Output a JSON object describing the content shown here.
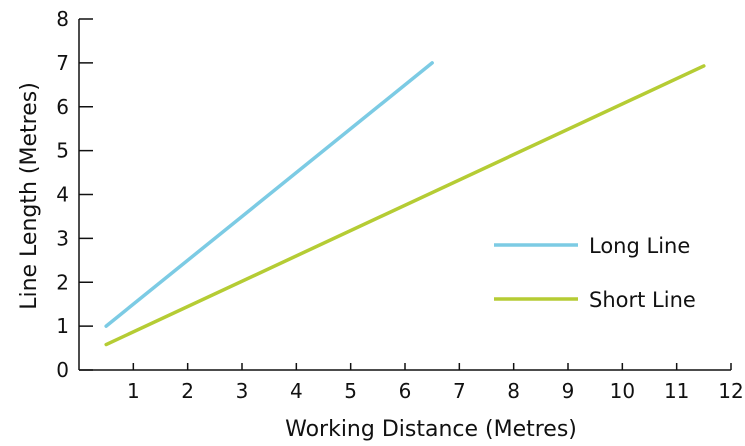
{
  "chart_data": {
    "type": "line",
    "title": "",
    "xlabel": "Working Distance (Metres)",
    "ylabel": "Line Length (Metres)",
    "xlim": [
      0,
      12
    ],
    "ylim": [
      0,
      8
    ],
    "xticks": [
      "1",
      "2",
      "3",
      "4",
      "5",
      "6",
      "7",
      "8",
      "9",
      "10",
      "11",
      "12"
    ],
    "yticks": [
      "0",
      "1",
      "2",
      "3",
      "4",
      "5",
      "6",
      "7",
      "8"
    ],
    "grid": false,
    "legend_position": "right",
    "series": [
      {
        "name": "Long Line",
        "color": "#7ccbe4",
        "x": [
          0.5,
          6.5
        ],
        "y": [
          1.0,
          7.0
        ]
      },
      {
        "name": "Short Line",
        "color": "#b5cc34",
        "x": [
          0.5,
          11.5
        ],
        "y": [
          0.58,
          6.93
        ]
      }
    ]
  }
}
